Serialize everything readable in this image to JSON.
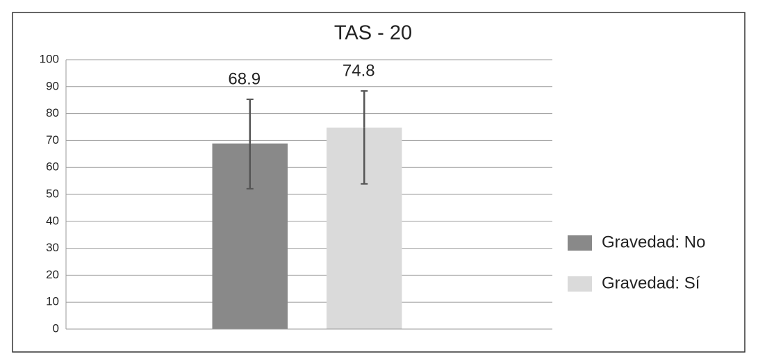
{
  "chart_data": {
    "type": "bar",
    "title": "TAS - 20",
    "categories": [
      null
    ],
    "series": [
      {
        "name": "Gravedad: No",
        "color": "#898989",
        "values": [
          68.9
        ],
        "error_minus": [
          16.8
        ],
        "error_plus": [
          16.4
        ]
      },
      {
        "name": "Gravedad: Sí",
        "color": "#dadada",
        "values": [
          74.8
        ],
        "error_minus": [
          20.9
        ],
        "error_plus": [
          13.6
        ]
      }
    ],
    "ylim": [
      0,
      100
    ],
    "yticks": [
      0,
      10,
      20,
      30,
      40,
      50,
      60,
      70,
      80,
      90,
      100
    ],
    "grid": true,
    "legend": "right"
  }
}
